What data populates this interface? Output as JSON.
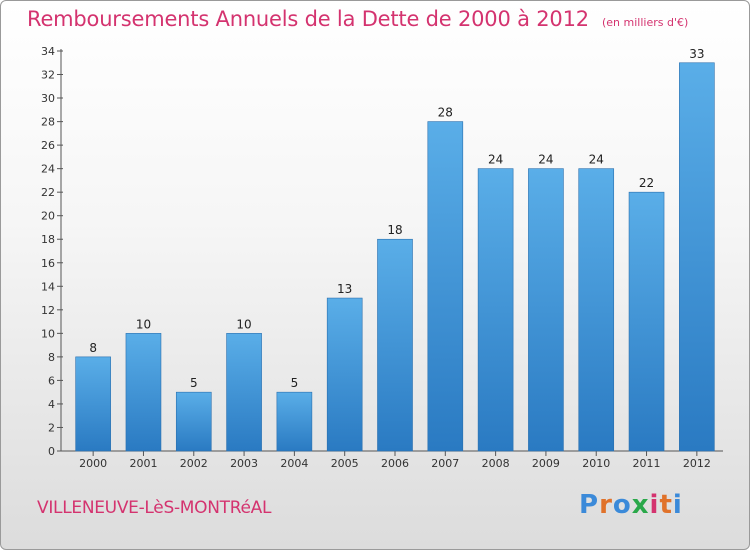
{
  "title": "Remboursements Annuels de la Dette de 2000 à 2012",
  "unit": "(en milliers d'€)",
  "commune": "VILLENEUVE-LèS-MONTRéAL",
  "logo_text": "Proxiti",
  "colors": {
    "title": "#d4336f",
    "bar_top": "#5aaee8",
    "bar_bottom": "#2a7ac2"
  },
  "chart_data": {
    "type": "bar",
    "categories": [
      "2000",
      "2001",
      "2002",
      "2003",
      "2004",
      "2005",
      "2006",
      "2007",
      "2008",
      "2009",
      "2010",
      "2011",
      "2012"
    ],
    "values": [
      8,
      10,
      5,
      10,
      5,
      13,
      18,
      28,
      24,
      24,
      24,
      22,
      33
    ],
    "title": "Remboursements Annuels de la Dette de 2000 à 2012",
    "xlabel": "",
    "ylabel": "",
    "ylim": [
      0,
      34
    ],
    "yticks": [
      0,
      2,
      4,
      6,
      8,
      10,
      12,
      14,
      16,
      18,
      20,
      22,
      24,
      26,
      28,
      30,
      32,
      34
    ],
    "grid": false,
    "legend": "none"
  }
}
